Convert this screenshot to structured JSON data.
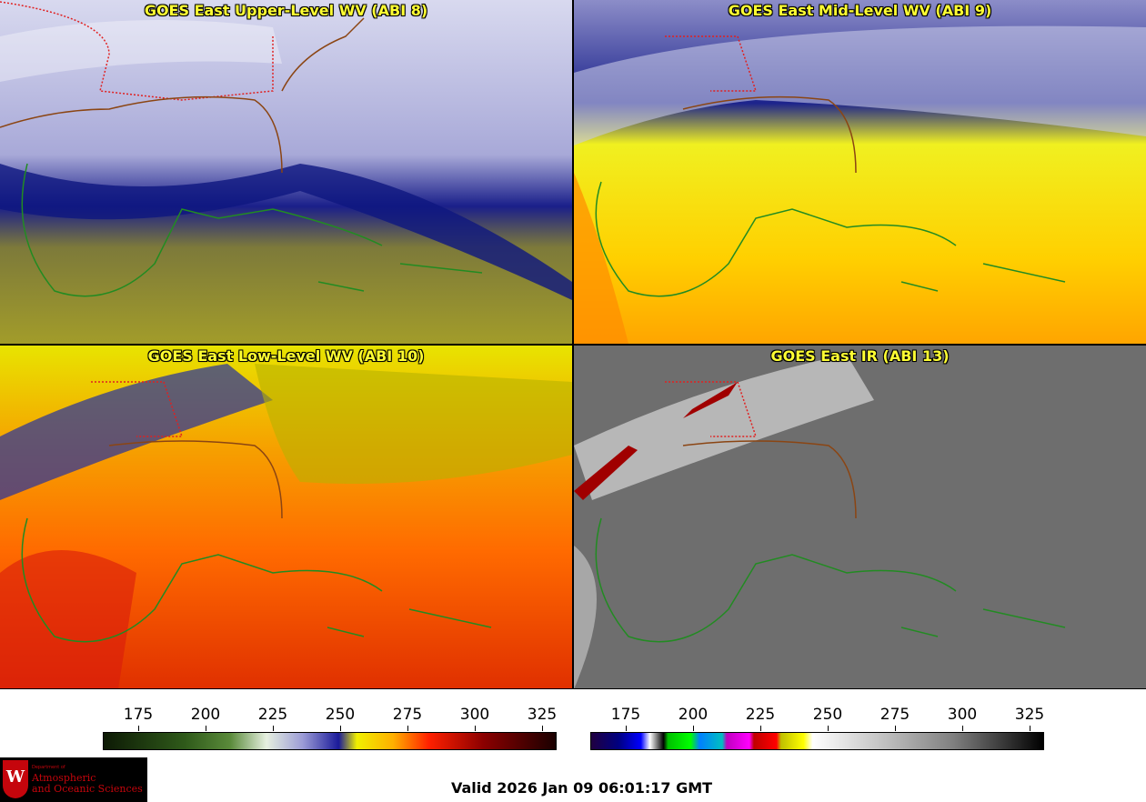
{
  "panels": [
    {
      "title": "GOES East Upper-Level WV (ABI 8)"
    },
    {
      "title": "GOES East Mid-Level WV (ABI 9)"
    },
    {
      "title": "GOES East Low-Level WV (ABI 10)"
    },
    {
      "title": "GOES East IR (ABI 13)"
    }
  ],
  "colorbars": [
    {
      "name": "water-vapor",
      "ticks": [
        "175",
        "200",
        "225",
        "250",
        "275",
        "300",
        "325"
      ]
    },
    {
      "name": "infrared",
      "ticks": [
        "175",
        "200",
        "225",
        "250",
        "275",
        "300",
        "325"
      ]
    }
  ],
  "logo": {
    "small_text": "Department of",
    "line1": "Atmospheric",
    "line2": "and Oceanic Sciences"
  },
  "valid_time": "Valid 2026 Jan 09 06:01:17 GMT"
}
